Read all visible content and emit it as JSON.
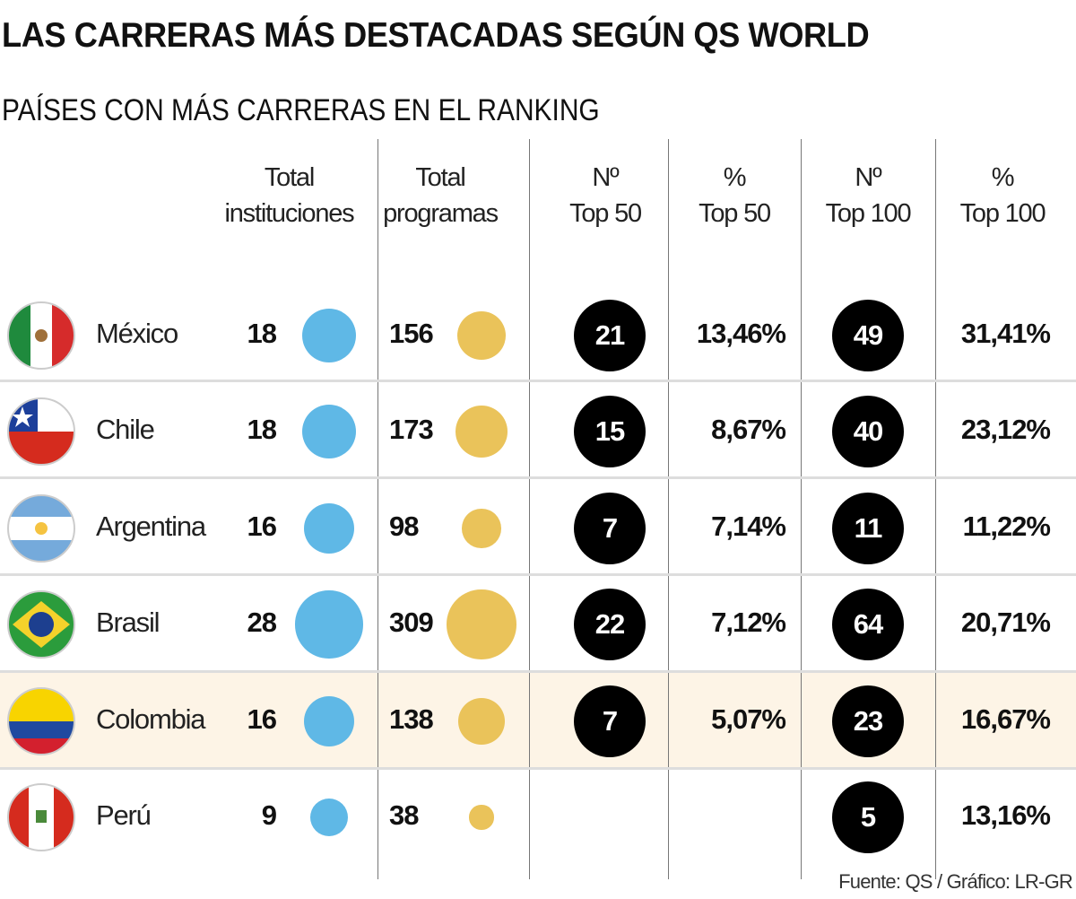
{
  "title": "LAS CARRERAS MÁS DESTACADAS SEGÚN QS WORLD",
  "subtitle": "PAÍSES CON MÁS CARRERAS EN EL RANKING",
  "source": "Fuente: QS / Gráfico: LR-GR",
  "colors": {
    "instituciones": "#5fb8e6",
    "programas": "#eac35a",
    "rank_circle": "#000000",
    "highlight_row": "#fdf4e6"
  },
  "chart_data": {
    "type": "table",
    "columns": [
      {
        "key": "instituciones",
        "line1": "Total",
        "line2": "instituciones"
      },
      {
        "key": "programas",
        "line1": "Total",
        "line2": "programas"
      },
      {
        "key": "top50",
        "line1": "Nº",
        "line2": "Top 50"
      },
      {
        "key": "pct50",
        "line1": "%",
        "line2": "Top 50"
      },
      {
        "key": "top100",
        "line1": "Nº",
        "line2": "Top 100"
      },
      {
        "key": "pct100",
        "line1": "%",
        "line2": "Top 100"
      }
    ],
    "rows": [
      {
        "country": "México",
        "flag": "mexico-flag",
        "instituciones": 18,
        "programas": 156,
        "top50": "21",
        "pct50": "13,46%",
        "top100": "49",
        "pct100": "31,41%"
      },
      {
        "country": "Chile",
        "flag": "chile-flag",
        "instituciones": 18,
        "programas": 173,
        "top50": "15",
        "pct50": "8,67%",
        "top100": "40",
        "pct100": "23,12%"
      },
      {
        "country": "Argentina",
        "flag": "argentina-flag",
        "instituciones": 16,
        "programas": 98,
        "top50": "7",
        "pct50": "7,14%",
        "top100": "11",
        "pct100": "11,22%"
      },
      {
        "country": "Brasil",
        "flag": "brasil-flag",
        "instituciones": 28,
        "programas": 309,
        "top50": "22",
        "pct50": "7,12%",
        "top100": "64",
        "pct100": "20,71%"
      },
      {
        "country": "Colombia",
        "flag": "colombia-flag",
        "highlighted": true,
        "instituciones": 16,
        "programas": 138,
        "top50": "7",
        "pct50": "5,07%",
        "top100": "23",
        "pct100": "16,67%"
      },
      {
        "country": "Perú",
        "flag": "peru-flag",
        "instituciones": 9,
        "programas": 38,
        "top50": null,
        "pct50": null,
        "top100": "5",
        "pct100": "13,16%"
      }
    ]
  }
}
